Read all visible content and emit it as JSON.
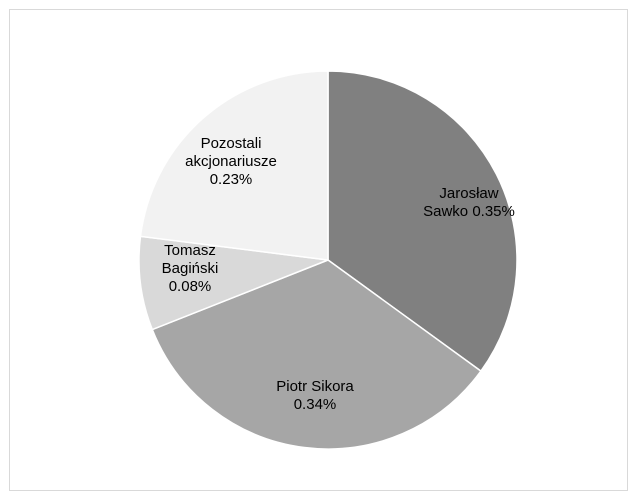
{
  "chart_data": {
    "type": "pie",
    "title": "",
    "legend": "none",
    "slices": [
      {
        "label_lines": [
          "Jarosław",
          "Sawko 0.35%"
        ],
        "name": "Jarosław Sawko",
        "value": 0.35,
        "color": "#808080"
      },
      {
        "label_lines": [
          "Piotr Sikora",
          "0.34%"
        ],
        "name": "Piotr Sikora",
        "value": 0.34,
        "color": "#a6a6a6"
      },
      {
        "label_lines": [
          "Tomasz",
          "Bagiński",
          "0.08%"
        ],
        "name": "Tomasz Bagiński",
        "value": 0.08,
        "color": "#d9d9d9"
      },
      {
        "label_lines": [
          "Pozostali",
          "akcjonariusze",
          "0.23%"
        ],
        "name": "Pozostali akcjonariusze",
        "value": 0.23,
        "color": "#f2f2f2"
      }
    ]
  }
}
